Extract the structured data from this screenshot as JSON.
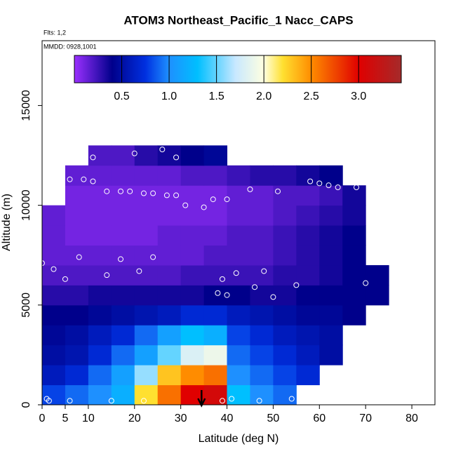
{
  "chart_data": {
    "type": "heatmap",
    "title": "ATOM3 Northeast_Pacific_1 Nacc_CAPS",
    "annotations": [
      "Flts: 1,2",
      "MMDD: 0928,1001"
    ],
    "x_label": "Latitude (deg N)",
    "y_label": "Altitude (m)",
    "xlim": [
      0,
      85
    ],
    "ylim": [
      0,
      18250
    ],
    "xticks": [
      0,
      5,
      10,
      20,
      30,
      40,
      50,
      60,
      70,
      80
    ],
    "yticks": [
      0,
      5000,
      10000,
      15000
    ],
    "x_bins": [
      0,
      5,
      10,
      15,
      20,
      25,
      30,
      35,
      40,
      45,
      50,
      55,
      60,
      65,
      70,
      75
    ],
    "y_bins": [
      0,
      1000,
      2000,
      3000,
      4000,
      5000,
      6000,
      7000,
      8000,
      9000,
      10000,
      11000,
      12000,
      13000
    ],
    "z": [
      [
        0.8,
        0.9,
        1.0,
        1.2,
        2.2,
        2.6,
        3.0,
        3.1,
        1.3,
        1.0,
        0.9,
        null,
        null,
        null,
        null
      ],
      [
        0.6,
        0.7,
        0.9,
        1.1,
        1.6,
        2.3,
        2.5,
        2.6,
        1.0,
        0.9,
        0.8,
        0.7,
        null,
        null,
        null
      ],
      [
        0.5,
        0.55,
        0.7,
        0.9,
        1.1,
        1.5,
        1.8,
        1.9,
        0.9,
        0.8,
        0.7,
        0.6,
        0.5,
        null,
        null
      ],
      [
        0.45,
        0.5,
        0.6,
        0.7,
        0.9,
        1.1,
        1.3,
        1.2,
        0.8,
        0.7,
        0.6,
        0.55,
        0.5,
        null,
        null
      ],
      [
        0.4,
        0.4,
        0.45,
        0.5,
        0.55,
        0.6,
        0.7,
        0.7,
        0.6,
        0.55,
        0.5,
        0.45,
        0.45,
        0.4,
        null
      ],
      [
        0.3,
        0.3,
        0.35,
        0.35,
        0.35,
        0.35,
        0.35,
        0.4,
        0.4,
        0.35,
        0.35,
        0.4,
        0.4,
        0.4,
        0.4
      ],
      [
        0.2,
        0.2,
        0.2,
        0.2,
        0.2,
        0.2,
        0.25,
        0.25,
        0.25,
        0.25,
        0.3,
        0.3,
        0.35,
        0.4,
        0.4
      ],
      [
        0.15,
        0.15,
        0.15,
        0.15,
        0.15,
        0.15,
        0.15,
        0.2,
        0.2,
        0.2,
        0.25,
        0.3,
        0.35,
        0.4,
        null
      ],
      [
        0.15,
        0.1,
        0.1,
        0.1,
        0.1,
        0.15,
        0.15,
        0.15,
        0.2,
        0.2,
        0.25,
        0.3,
        0.35,
        0.4,
        null
      ],
      [
        0.15,
        0.1,
        0.1,
        0.1,
        0.1,
        0.1,
        0.1,
        0.1,
        0.15,
        0.15,
        0.2,
        0.25,
        0.3,
        0.35,
        null
      ],
      [
        null,
        0.1,
        0.1,
        0.1,
        0.1,
        0.1,
        0.1,
        0.1,
        0.15,
        0.15,
        0.2,
        0.2,
        0.25,
        0.35,
        null
      ],
      [
        null,
        0.15,
        0.15,
        0.15,
        0.15,
        0.15,
        0.2,
        0.2,
        0.25,
        0.3,
        0.3,
        0.35,
        0.4,
        null,
        null
      ],
      [
        null,
        null,
        0.2,
        0.2,
        0.3,
        0.35,
        0.4,
        0.45,
        null,
        null,
        null,
        null,
        null,
        null,
        null
      ]
    ],
    "zlim": [
      0,
      3.45
    ],
    "zticks": [
      {
        "value": 0.5,
        "label": "0.5"
      },
      {
        "value": 1,
        "label": "1.0"
      },
      {
        "value": 1.5,
        "label": "1.5"
      },
      {
        "value": 2,
        "label": "2.0"
      },
      {
        "value": 2.5,
        "label": "2.5"
      },
      {
        "value": 3,
        "label": "3.0"
      }
    ],
    "colorscale": [
      [
        0,
        "#9b30ff"
      ],
      [
        0.4,
        "#00008b"
      ],
      [
        0.75,
        "#0030e0"
      ],
      [
        1.0,
        "#1e90ff"
      ],
      [
        1.3,
        "#00bfff"
      ],
      [
        1.7,
        "#c8e8ff"
      ],
      [
        2.0,
        "#ffffe0"
      ],
      [
        2.2,
        "#ffe030"
      ],
      [
        2.5,
        "#ff8c00"
      ],
      [
        3.0,
        "#e00000"
      ],
      [
        3.45,
        "#a52a2a"
      ]
    ],
    "points": {
      "color": "#ffffff",
      "x": [
        0,
        1,
        1.5,
        2.5,
        2.5,
        4,
        5,
        6,
        6,
        8,
        9,
        11,
        11,
        14,
        14,
        17,
        17,
        15,
        19,
        20,
        21,
        22,
        22,
        24,
        24,
        26,
        27,
        29,
        29,
        31,
        35,
        37,
        38,
        39,
        39,
        40,
        40,
        41,
        42,
        45,
        46,
        47,
        48,
        50,
        51,
        54,
        55,
        58,
        60,
        62,
        64,
        68,
        70
      ],
      "y": [
        7100,
        300,
        200,
        6800,
        11900,
        11300,
        6300,
        11300,
        200,
        7400,
        11300,
        12400,
        11200,
        10700,
        6500,
        10700,
        7300,
        200,
        10700,
        12600,
        6700,
        10600,
        200,
        10600,
        7400,
        12800,
        10500,
        12400,
        10500,
        10000,
        9900,
        10300,
        5600,
        6300,
        200,
        5500,
        10300,
        300,
        6600,
        10800,
        5900,
        200,
        6700,
        5400,
        10700,
        300,
        6000,
        11200,
        11100,
        11000,
        10900,
        10900,
        6100
      ]
    },
    "arrow_x": 34.5
  }
}
